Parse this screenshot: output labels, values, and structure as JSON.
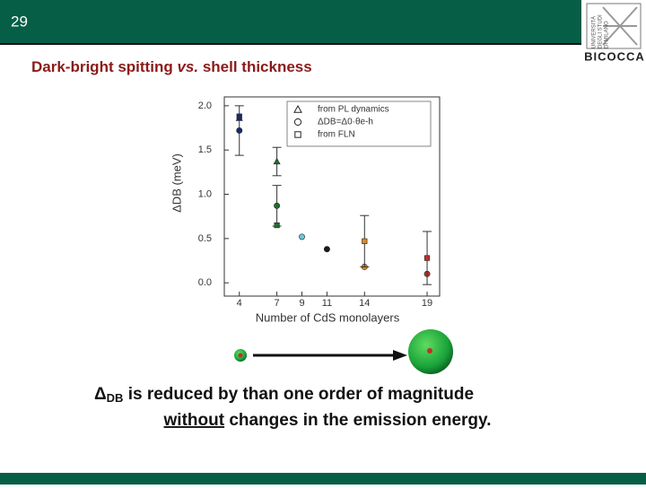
{
  "slide_number": "29",
  "logo": {
    "line1": "UNIVERSITÀ",
    "line2": "DEGLI STUDI",
    "line3": "DI MILANO",
    "name": "BICOCCA"
  },
  "title": {
    "parts": [
      "Dark-bright spitting ",
      "vs.",
      " shell thickness"
    ]
  },
  "chart_data": {
    "type": "scatter",
    "x_label": "Number of CdS monolayers",
    "y_label": "ΔDB (meV)",
    "xlim": [
      2.8,
      20
    ],
    "ylim": [
      -0.15,
      2.1
    ],
    "xticks": [
      4,
      7,
      9,
      11,
      14,
      19
    ],
    "yticks": [
      {
        "value": 0,
        "label": "0.0"
      },
      0.5,
      {
        "value": 1,
        "label": "1.0"
      },
      1.5,
      {
        "value": 2,
        "label": "2.0"
      }
    ],
    "legend": "top-right",
    "series": [
      {
        "name": "from PL dynamics",
        "marker": "triangle",
        "x": [
          4,
          7
        ],
        "values": [
          1.86,
          1.37
        ],
        "errors": [
          null,
          0.16
        ],
        "colors": [
          "#1b2a6e",
          "#1f6e30"
        ]
      },
      {
        "name": "ΔDB=Δ0·θe-h",
        "marker": "circle",
        "x": [
          4,
          7,
          9,
          11,
          14,
          19
        ],
        "values": [
          1.72,
          0.87,
          0.52,
          0.38,
          0.18,
          0.1
        ],
        "errors": [
          0.28,
          0.23,
          null,
          null,
          null,
          null
        ],
        "colors": [
          "#1b2a6e",
          "#1f6e30",
          "#6cc6d8",
          "#1a1a1a",
          "#d98a2a",
          "#c0302a"
        ]
      },
      {
        "name": "from FLN",
        "marker": "square",
        "x": [
          4,
          7,
          14,
          19
        ],
        "values": [
          1.88,
          0.65,
          0.47,
          0.28
        ],
        "errors": [
          null,
          null,
          0.29,
          0.3
        ],
        "colors": [
          "#1b2a6e",
          "#1f6e30",
          "#d98a2a",
          "#c0302a"
        ]
      }
    ]
  },
  "caption": {
    "line1": [
      "Δ",
      "DB",
      " is reduced by than one order of magnitude"
    ],
    "line2": [
      "without",
      " changes in the emission energy."
    ]
  }
}
